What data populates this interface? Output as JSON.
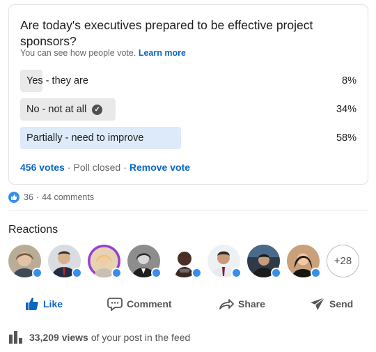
{
  "poll": {
    "question": "Are today's executives prepared to be effective project sponsors?",
    "visibility_text": "You can see how people vote.",
    "learn_more": "Learn more",
    "options": [
      {
        "label": "Yes - they are",
        "percent_text": "8%",
        "percent": 8,
        "selected": false,
        "winner": false
      },
      {
        "label": "No - not at all",
        "percent_text": "34%",
        "percent": 34,
        "selected": true,
        "winner": false
      },
      {
        "label": "Partially - need to improve",
        "percent_text": "58%",
        "percent": 58,
        "selected": false,
        "winner": true
      }
    ],
    "votes": "456 votes",
    "status": "Poll closed",
    "remove_vote": "Remove vote"
  },
  "social": {
    "reaction_count": "36",
    "comments": "44 comments"
  },
  "reactions": {
    "title": "Reactions",
    "more": "+28"
  },
  "actions": {
    "like": "Like",
    "comment": "Comment",
    "share": "Share",
    "send": "Send"
  },
  "views": {
    "count": "33,209 views",
    "suffix": "of your post in the feed"
  },
  "colors": {
    "brand_blue": "#0a66c2",
    "reaction_blue": "#378fe9",
    "winner_bar": "#dceafa",
    "option_bar": "#e9e9e9"
  }
}
